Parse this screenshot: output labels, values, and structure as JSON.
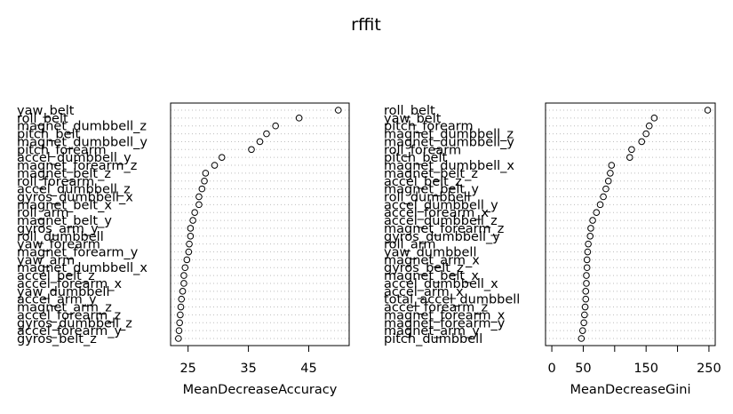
{
  "title": "rffit",
  "chart_data": [
    {
      "type": "scatter",
      "xlabel": "MeanDecreaseAccuracy",
      "ylabel": "",
      "xlim": [
        22.1,
        51.7
      ],
      "xticks": [
        25,
        35,
        45
      ],
      "xtick_labels": [
        "25",
        "35",
        "45"
      ],
      "grid": "dotted horizontal",
      "labels": [
        "yaw_belt",
        "roll_belt",
        "magnet_dumbbell_z",
        "pitch_belt",
        "magnet_dumbbell_y",
        "pitch_forearm",
        "accel_dumbbell_y",
        "magnet_forearm_z",
        "magnet_belt_z",
        "roll_forearm",
        "accel_dumbbell_z",
        "gyros_dumbbell_x",
        "magnet_belt_x",
        "roll_arm",
        "magnet_belt_y",
        "gyros_arm_y",
        "roll_dumbbell",
        "yaw_forearm",
        "magnet_forearm_y",
        "yaw_arm",
        "magnet_dumbbell_x",
        "accel_belt_z",
        "accel_forearm_x",
        "yaw_dumbbell",
        "accel_arm_y",
        "magnet_arm_z",
        "accel_forearm_z",
        "gyros_dumbbell_z",
        "accel_forearm_y",
        "gyros_belt_z"
      ],
      "values": [
        49.9,
        43.4,
        39.5,
        38.0,
        36.9,
        35.5,
        30.6,
        29.4,
        27.9,
        27.7,
        27.3,
        26.8,
        26.8,
        26.1,
        25.8,
        25.4,
        25.4,
        25.2,
        25.1,
        24.8,
        24.5,
        24.3,
        24.3,
        24.1,
        23.9,
        23.8,
        23.7,
        23.6,
        23.5,
        23.4
      ]
    },
    {
      "type": "scatter",
      "xlabel": "MeanDecreaseGini",
      "ylabel": "",
      "xlim": [
        -10,
        260
      ],
      "xticks": [
        0,
        50,
        100,
        150,
        200,
        250
      ],
      "xtick_labels": [
        "0",
        "50",
        "",
        "150",
        "",
        "250"
      ],
      "grid": "dotted horizontal",
      "labels": [
        "roll_belt",
        "yaw_belt",
        "pitch_forearm",
        "magnet_dumbbell_z",
        "magnet_dumbbell_y",
        "roll_forearm",
        "pitch_belt",
        "magnet_dumbbell_x",
        "magnet_belt_z",
        "accel_belt_z",
        "magnet_belt_y",
        "roll_dumbbell",
        "accel_dumbbell_y",
        "accel_forearm_x",
        "accel_dumbbell_z",
        "magnet_forearm_z",
        "gyros_dumbbell_y",
        "roll_arm",
        "yaw_dumbbell",
        "magnet_arm_x",
        "gyros_belt_z",
        "magnet_belt_x",
        "accel_dumbbell_x",
        "accel_arm_x",
        "total_accel_dumbbell",
        "accel_forearm_z",
        "magnet_forearm_x",
        "magnet_forearm_y",
        "magnet_arm_y",
        "pitch_dumbbell"
      ],
      "values": [
        248,
        163,
        155,
        150,
        143,
        127,
        124,
        95,
        93,
        90,
        86,
        82,
        77,
        71,
        65,
        62,
        61,
        58,
        57,
        56,
        56,
        55,
        55,
        54,
        54,
        53,
        52,
        51,
        49,
        47
      ]
    }
  ]
}
